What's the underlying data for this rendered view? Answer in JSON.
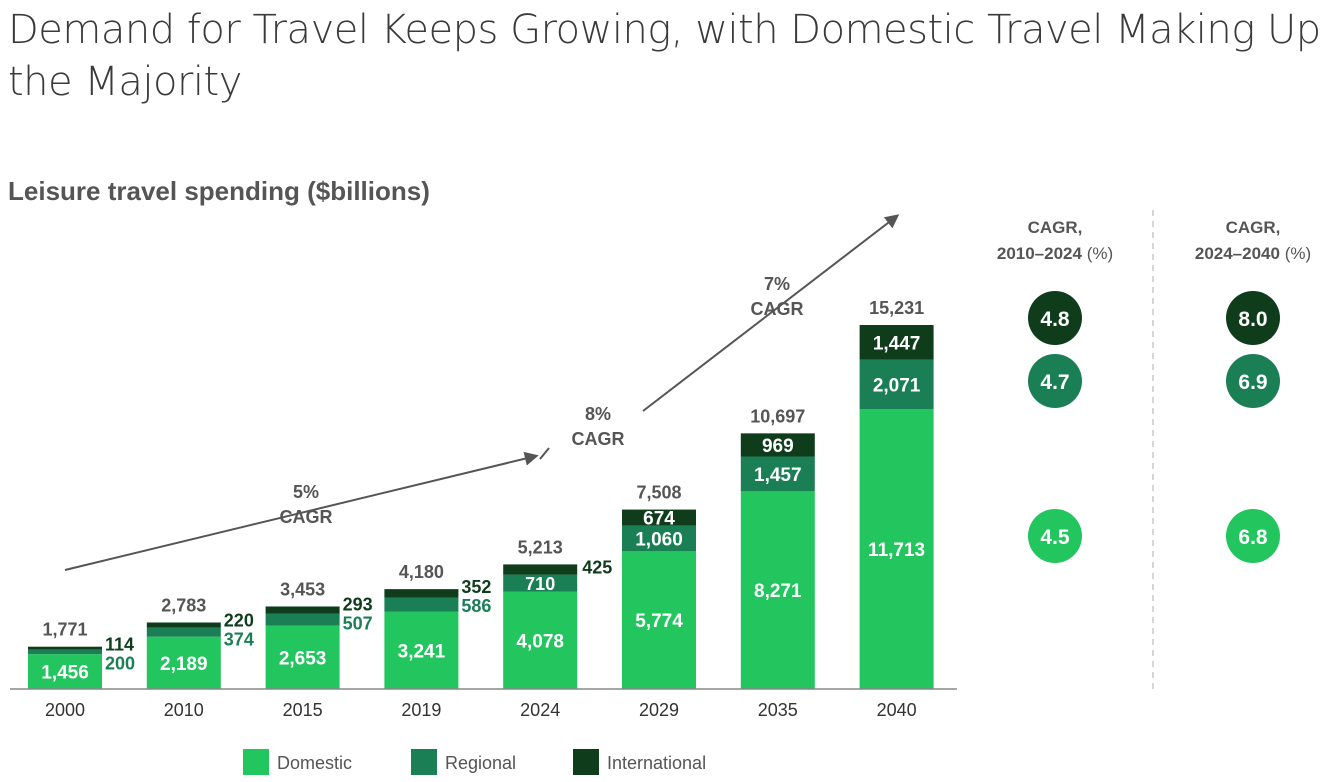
{
  "title": "Demand for Travel Keeps Growing, with Domestic Travel Making Up the Majority",
  "subtitle": "Leisure travel spending ($billions)",
  "colors": {
    "domestic": "#22c55e",
    "regional": "#1b7f56",
    "international": "#0f3d1c"
  },
  "chart_data": {
    "type": "bar",
    "stacked": true,
    "title": "Leisure travel spending ($billions)",
    "categories": [
      "2000",
      "2010",
      "2015",
      "2019",
      "2024",
      "2029",
      "2035",
      "2040"
    ],
    "series": [
      {
        "name": "Domestic",
        "values": [
          1456,
          2189,
          2653,
          3241,
          4078,
          5774,
          8271,
          11713
        ]
      },
      {
        "name": "Regional",
        "values": [
          200,
          374,
          507,
          586,
          710,
          1060,
          1457,
          2071
        ]
      },
      {
        "name": "International",
        "values": [
          114,
          220,
          293,
          352,
          425,
          674,
          969,
          1447
        ]
      }
    ],
    "totals": [
      1771,
      2783,
      3453,
      4180,
      5213,
      7508,
      10697,
      15231
    ],
    "value_labels": {
      "domestic": [
        "1,456",
        "2,189",
        "2,653",
        "3,241",
        "4,078",
        "5,774",
        "8,271",
        "11,713"
      ],
      "regional": [
        "200",
        "374",
        "507",
        "586",
        "710",
        "1,060",
        "1,457",
        "2,071"
      ],
      "international": [
        "114",
        "220",
        "293",
        "352",
        "425",
        "674",
        "969",
        "1,447"
      ],
      "totals": [
        "1,771",
        "2,783",
        "3,453",
        "4,180",
        "5,213",
        "7,508",
        "10,697",
        "15,231"
      ]
    },
    "ylim": [
      0,
      15231
    ],
    "xlabel": "",
    "ylabel": "",
    "annotations": [
      {
        "pct": "5%",
        "label": "CAGR"
      },
      {
        "pct": "8%",
        "label": "CAGR"
      },
      {
        "pct": "7%",
        "label": "CAGR"
      }
    ],
    "legend": [
      "Domestic",
      "Regional",
      "International"
    ],
    "legend_position": "bottom"
  },
  "cagr_table": {
    "col1_header": [
      "CAGR,",
      "2010–2024",
      "(%)"
    ],
    "col2_header": [
      "CAGR,",
      "2024–2040",
      "(%)"
    ],
    "rows": [
      {
        "series": "International",
        "v1": "4.8",
        "v2": "8.0"
      },
      {
        "series": "Regional",
        "v1": "4.7",
        "v2": "6.9"
      },
      {
        "series": "Domestic",
        "v1": "4.5",
        "v2": "6.8"
      }
    ]
  }
}
